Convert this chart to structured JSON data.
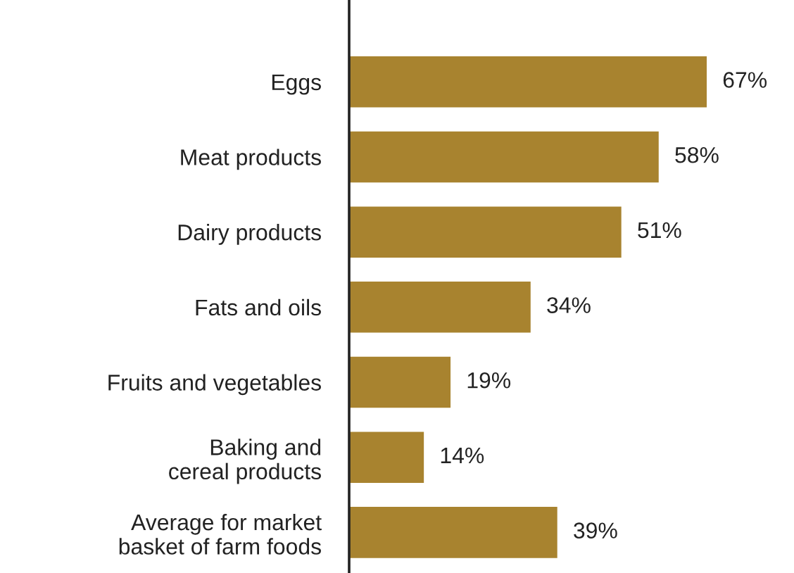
{
  "chart_data": {
    "type": "bar",
    "orientation": "horizontal",
    "categories": [
      "Eggs",
      "Meat products",
      "Dairy products",
      "Fats and oils",
      "Fruits and vegetables",
      "Baking and\ncereal products",
      "Average for market\nbasket of farm foods"
    ],
    "values": [
      67,
      58,
      51,
      34,
      19,
      14,
      39
    ],
    "value_labels": [
      "67%",
      "58%",
      "51%",
      "34%",
      "19%",
      "14%",
      "39%"
    ],
    "color": "#a8832f",
    "tick_labels": "y",
    "grid": false,
    "legend": false
  }
}
